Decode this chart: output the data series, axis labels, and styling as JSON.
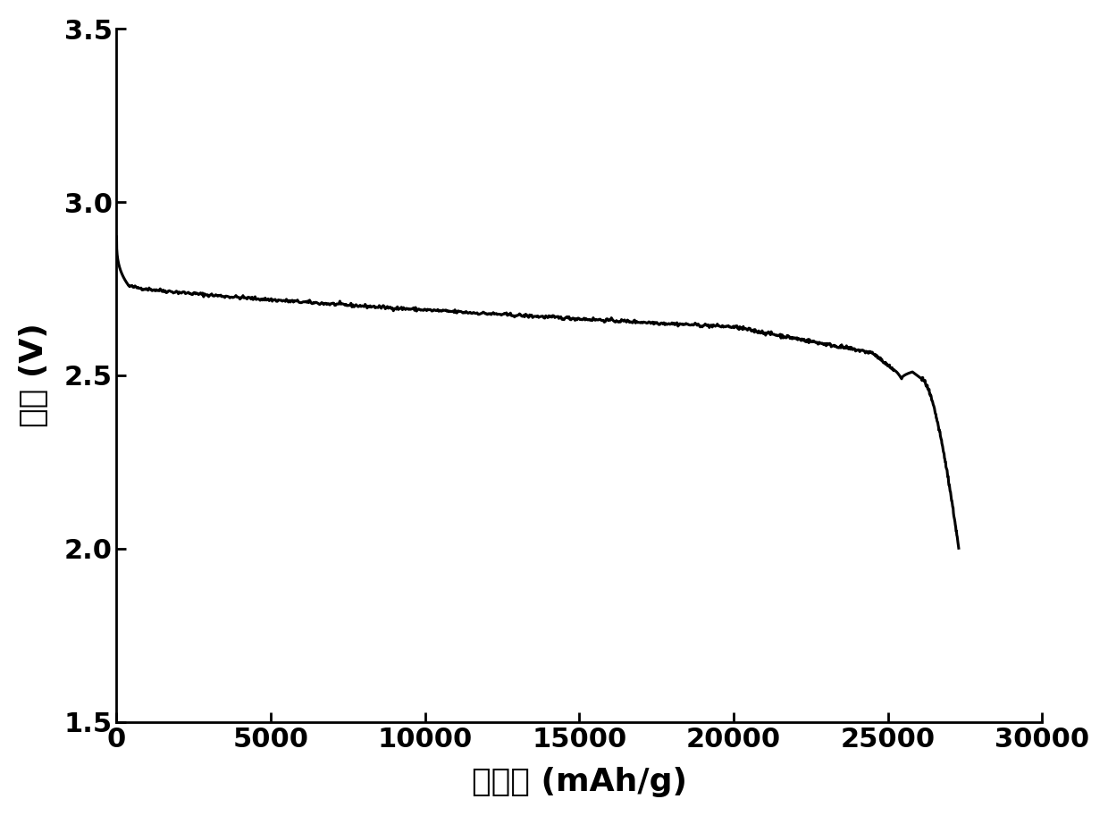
{
  "xlabel": "比容量 (mAh/g)",
  "ylabel": "电压 (V)",
  "xlim": [
    0,
    30000
  ],
  "ylim": [
    1.5,
    3.5
  ],
  "xticks": [
    0,
    5000,
    10000,
    15000,
    20000,
    25000,
    30000
  ],
  "yticks": [
    1.5,
    2.0,
    2.5,
    3.0,
    3.5
  ],
  "line_color": "#000000",
  "line_width": 2.2,
  "background_color": "#ffffff",
  "xlabel_fontsize": 26,
  "ylabel_fontsize": 26,
  "tick_fontsize": 22
}
